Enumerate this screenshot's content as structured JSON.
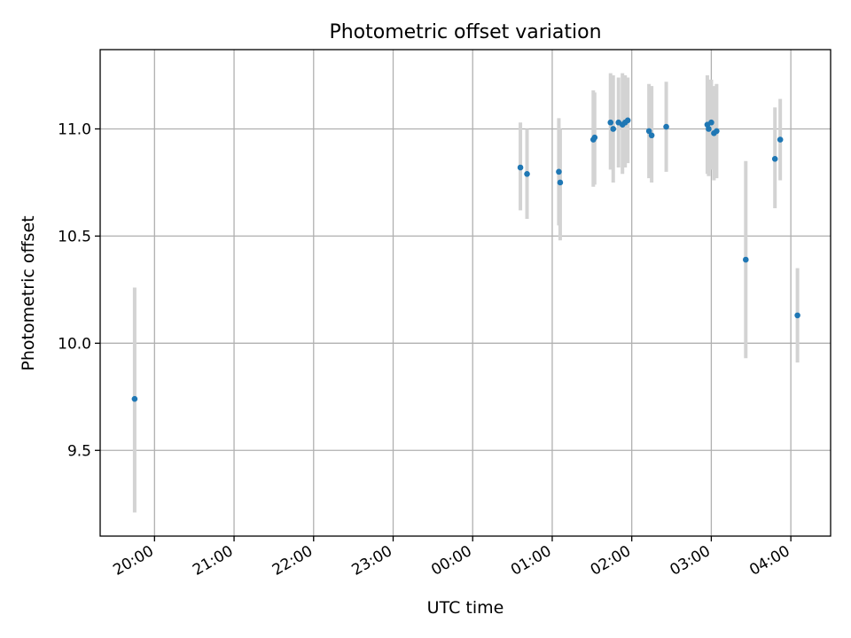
{
  "chart_data": {
    "type": "scatter",
    "title": "Photometric offset variation",
    "xlabel": "UTC time",
    "ylabel": "Photometric offset",
    "x_scale": "time",
    "xlim": [
      "2024-01-01T19:19:00",
      "2024-01-02T04:30:00"
    ],
    "ylim": [
      9.1,
      11.37
    ],
    "grid": true,
    "x_ticks": [
      {
        "t": "2024-01-01T20:00:00",
        "label": "20:00"
      },
      {
        "t": "2024-01-01T21:00:00",
        "label": "21:00"
      },
      {
        "t": "2024-01-01T22:00:00",
        "label": "22:00"
      },
      {
        "t": "2024-01-01T23:00:00",
        "label": "23:00"
      },
      {
        "t": "2024-01-02T00:00:00",
        "label": "00:00"
      },
      {
        "t": "2024-01-02T01:00:00",
        "label": "01:00"
      },
      {
        "t": "2024-01-02T02:00:00",
        "label": "02:00"
      },
      {
        "t": "2024-01-02T03:00:00",
        "label": "03:00"
      },
      {
        "t": "2024-01-02T04:00:00",
        "label": "04:00"
      }
    ],
    "y_ticks": [
      {
        "v": 9.5,
        "label": "9.5"
      },
      {
        "v": 10.0,
        "label": "10.0"
      },
      {
        "v": 10.5,
        "label": "10.5"
      },
      {
        "v": 11.0,
        "label": "11.0"
      }
    ],
    "points": [
      {
        "t": "2024-01-01T19:45:00",
        "y": 9.74,
        "lo": 9.21,
        "hi": 10.26
      },
      {
        "t": "2024-01-02T00:36:00",
        "y": 10.82,
        "lo": 10.62,
        "hi": 11.03
      },
      {
        "t": "2024-01-02T00:41:00",
        "y": 10.79,
        "lo": 10.58,
        "hi": 11.0
      },
      {
        "t": "2024-01-02T01:05:00",
        "y": 10.8,
        "lo": 10.55,
        "hi": 11.05
      },
      {
        "t": "2024-01-02T01:06:00",
        "y": 10.75,
        "lo": 10.48,
        "hi": 11.0
      },
      {
        "t": "2024-01-02T01:31:00",
        "y": 10.95,
        "lo": 10.73,
        "hi": 11.18
      },
      {
        "t": "2024-01-02T01:32:00",
        "y": 10.96,
        "lo": 10.74,
        "hi": 11.17
      },
      {
        "t": "2024-01-02T01:44:00",
        "y": 11.03,
        "lo": 10.81,
        "hi": 11.26
      },
      {
        "t": "2024-01-02T01:46:00",
        "y": 11.0,
        "lo": 10.75,
        "hi": 11.25
      },
      {
        "t": "2024-01-02T01:50:00",
        "y": 11.03,
        "lo": 10.82,
        "hi": 11.24
      },
      {
        "t": "2024-01-02T01:53:00",
        "y": 11.02,
        "lo": 10.79,
        "hi": 11.26
      },
      {
        "t": "2024-01-02T01:55:00",
        "y": 11.03,
        "lo": 10.82,
        "hi": 11.25
      },
      {
        "t": "2024-01-02T01:57:00",
        "y": 11.04,
        "lo": 10.84,
        "hi": 11.24
      },
      {
        "t": "2024-01-02T02:13:00",
        "y": 10.99,
        "lo": 10.77,
        "hi": 11.21
      },
      {
        "t": "2024-01-02T02:15:00",
        "y": 10.97,
        "lo": 10.75,
        "hi": 11.2
      },
      {
        "t": "2024-01-02T02:26:00",
        "y": 11.01,
        "lo": 10.8,
        "hi": 11.22
      },
      {
        "t": "2024-01-02T02:57:00",
        "y": 11.02,
        "lo": 10.79,
        "hi": 11.25
      },
      {
        "t": "2024-01-02T02:58:00",
        "y": 11.0,
        "lo": 10.78,
        "hi": 11.23
      },
      {
        "t": "2024-01-02T03:00:00",
        "y": 11.03,
        "lo": 10.81,
        "hi": 11.23
      },
      {
        "t": "2024-01-02T03:02:00",
        "y": 10.98,
        "lo": 10.76,
        "hi": 11.2
      },
      {
        "t": "2024-01-02T03:04:00",
        "y": 10.99,
        "lo": 10.77,
        "hi": 11.21
      },
      {
        "t": "2024-01-02T03:26:00",
        "y": 10.39,
        "lo": 9.93,
        "hi": 10.85
      },
      {
        "t": "2024-01-02T03:48:00",
        "y": 10.86,
        "lo": 10.63,
        "hi": 11.1
      },
      {
        "t": "2024-01-02T03:52:00",
        "y": 10.95,
        "lo": 10.76,
        "hi": 11.14
      },
      {
        "t": "2024-01-02T04:05:00",
        "y": 10.13,
        "lo": 9.91,
        "hi": 10.35
      }
    ],
    "colors": {
      "marker": "#1f77b4",
      "errorbar": "#d3d3d3",
      "grid": "#b0b0b0"
    }
  }
}
